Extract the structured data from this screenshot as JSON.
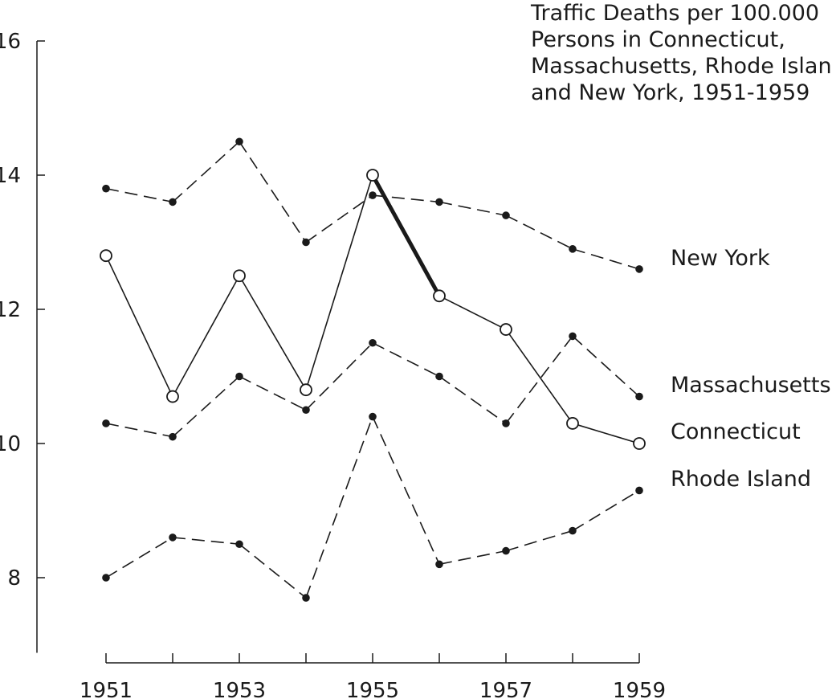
{
  "chart_data": {
    "type": "line",
    "title_lines": [
      "Traffic Deaths per 100.000",
      "Persons in Connecticut,",
      "Massachusetts, Rhode Island,",
      "and New York, 1951-1959"
    ],
    "x": [
      1951,
      1952,
      1953,
      1954,
      1955,
      1956,
      1957,
      1958,
      1959
    ],
    "x_tick_labels": [
      "1951",
      "1953",
      "1955",
      "1957",
      "1959"
    ],
    "y_tick_labels": [
      "16",
      "14",
      "12",
      "10",
      "8"
    ],
    "ylim": [
      7,
      16
    ],
    "grid": false,
    "series": [
      {
        "name": "New York",
        "style": "dashed",
        "marker": "filled",
        "values": [
          13.8,
          13.6,
          14.5,
          13.0,
          13.7,
          13.6,
          13.4,
          12.9,
          12.6
        ]
      },
      {
        "name": "Massachusetts",
        "style": "dashed",
        "marker": "filled",
        "values": [
          10.3,
          10.1,
          11.0,
          10.5,
          11.5,
          11.0,
          10.3,
          11.6,
          10.7
        ]
      },
      {
        "name": "Connecticut",
        "style": "solid",
        "marker": "open",
        "values": [
          12.8,
          10.7,
          12.5,
          10.8,
          14.0,
          12.2,
          11.7,
          10.3,
          10.0
        ],
        "highlight_segment": [
          1955,
          1956
        ]
      },
      {
        "name": "Rhode Island",
        "style": "dashed",
        "marker": "filled",
        "values": [
          8.0,
          8.6,
          8.5,
          7.7,
          10.4,
          8.2,
          8.4,
          8.7,
          9.3
        ]
      }
    ],
    "colors": {
      "ink": "#1a1a1a",
      "background": "#ffffff"
    }
  }
}
